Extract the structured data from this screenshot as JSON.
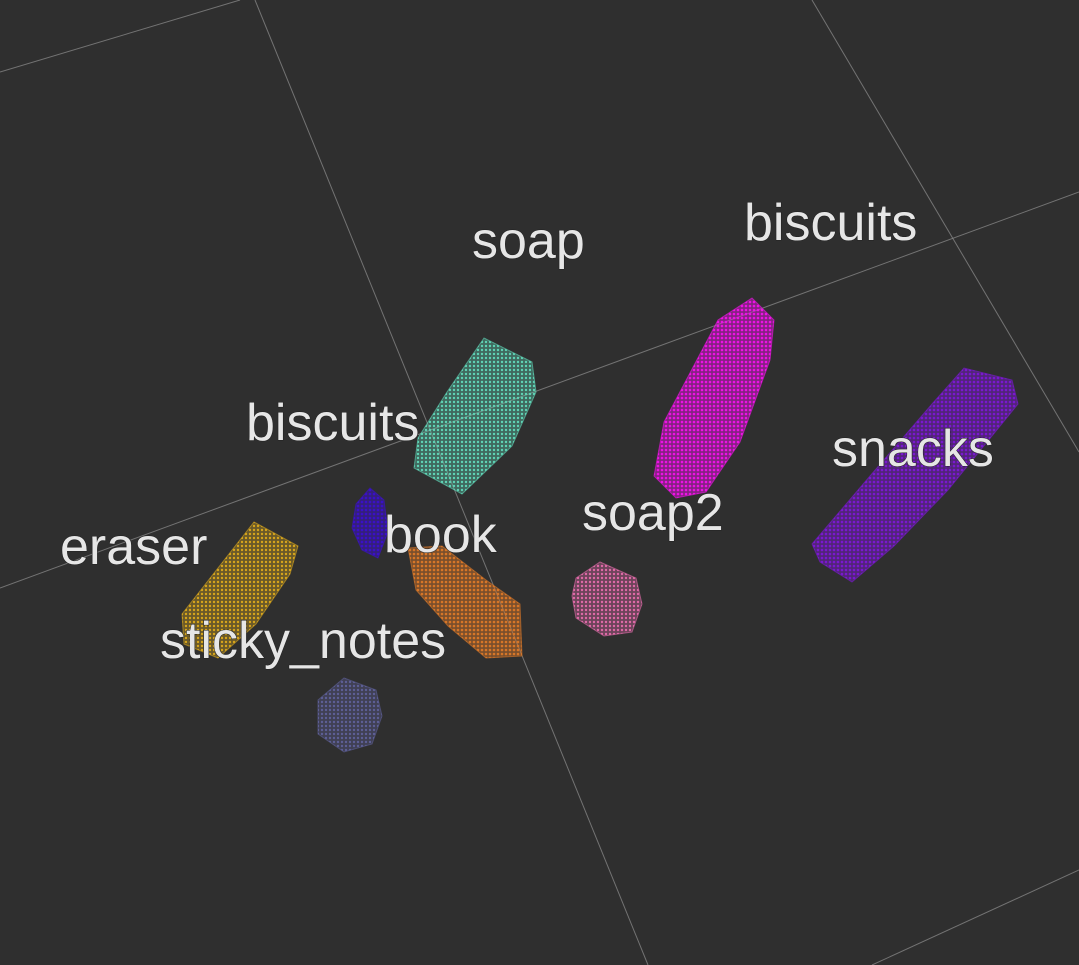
{
  "scene": {
    "background": "#2f2f2f",
    "grid_color": "#8a8a8a"
  },
  "objects": [
    {
      "id": "biscuits-teal",
      "label": "biscuits",
      "color": "#5fd3b5"
    },
    {
      "id": "soap-pink-top",
      "label": "soap",
      "color": "#ee12e6"
    },
    {
      "id": "snacks-purple",
      "label": "snacks",
      "color": "#7a18d0"
    },
    {
      "id": "blue-small",
      "label": "",
      "color": "#3a10c8"
    },
    {
      "id": "book-orange",
      "label": "book",
      "color": "#d77628"
    },
    {
      "id": "soap2-pink",
      "label": "soap2",
      "color": "#e06aa8"
    },
    {
      "id": "eraser-yellow",
      "label": "eraser",
      "color": "#d7a51c"
    },
    {
      "id": "sticky-notes-slate",
      "label": "sticky_notes",
      "color": "#5d5f96"
    }
  ],
  "labels": [
    {
      "text": "soap"
    },
    {
      "text": "biscuits"
    },
    {
      "text": "biscuits"
    },
    {
      "text": "snacks"
    },
    {
      "text": "soap2"
    },
    {
      "text": "book"
    },
    {
      "text": "eraser"
    },
    {
      "text": "sticky_notes"
    }
  ]
}
